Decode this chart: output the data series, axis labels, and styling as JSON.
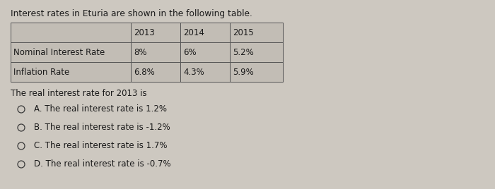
{
  "title": "Interest rates in Eturia are shown in the following table.",
  "table_headers": [
    "",
    "2013",
    "2014",
    "2015"
  ],
  "table_rows": [
    [
      "Nominal Interest Rate",
      "8%",
      "6%",
      "5.2%"
    ],
    [
      "Inflation Rate",
      "6.8%",
      "4.3%",
      "5.9%"
    ]
  ],
  "question": "The real interest rate for 2013 is",
  "options": [
    "A. The real interest rate is 1.2%",
    "B. The real interest rate is -1.2%",
    "C. The real interest rate is 1.7%",
    "D. The real interest rate is -0.7%"
  ],
  "bg_color": "#cdc8c0",
  "table_bg": "#c2bdb5",
  "border_color": "#555555",
  "text_color": "#1a1a1a",
  "font_size": 8.5,
  "title_font_size": 8.8
}
